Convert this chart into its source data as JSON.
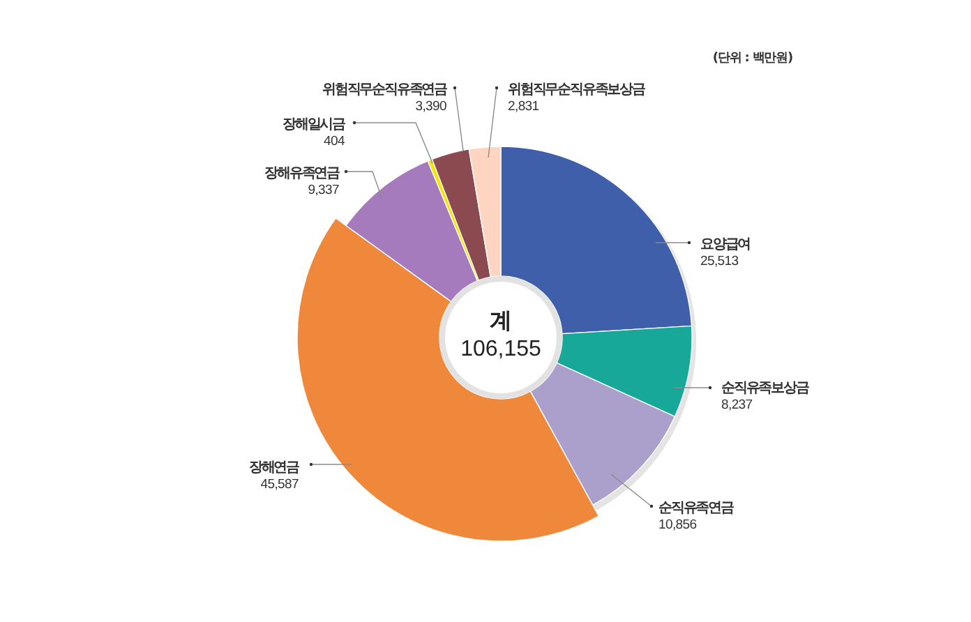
{
  "chart_data": {
    "type": "donut",
    "categories": [
      "요양급여",
      "순직유족보상금",
      "순직유족연금",
      "장해연금",
      "장해유족연금",
      "장해일시금",
      "위험직무순직유족연금",
      "위험직무순직유족보상금"
    ],
    "values": [
      25513,
      8237,
      10856,
      45587,
      9337,
      404,
      3390,
      2831
    ],
    "value_labels": [
      "25,513",
      "8,237",
      "10,856",
      "45,587",
      "9,337",
      "404",
      "3,390",
      "2,831"
    ],
    "colors": [
      "#3f5fab",
      "#17a89a",
      "#ab9fcb",
      "#f0883c",
      "#a67bbd",
      "#f5e400",
      "#8b4a4f",
      "#fdd5c0"
    ],
    "annotations": [
      "(단위 : 백만원)",
      "계",
      "106,155"
    ]
  }
}
